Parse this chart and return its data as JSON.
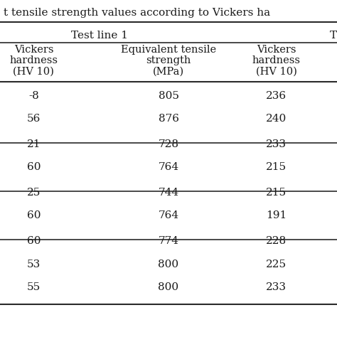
{
  "title": "t tensile strength values according to Vickers ha",
  "section_header": "Test line 1",
  "col1_header": [
    "Vickers",
    "hardness",
    "(HV 10)"
  ],
  "col2_header": [
    "Equivalent tensile",
    "strength",
    "(MPa)"
  ],
  "col3_header": [
    "Vickers",
    "hardness",
    "(HV 10)"
  ],
  "col1_partial": [
    "-8",
    "56",
    "21",
    "60",
    "25",
    "60",
    "60",
    "53",
    "55"
  ],
  "col2_values": [
    "805",
    "876",
    "728",
    "764",
    "744",
    "764",
    "774",
    "800",
    "800"
  ],
  "col3_values": [
    "236",
    "240",
    "233",
    "215",
    "215",
    "191",
    "228",
    "225",
    "233"
  ],
  "group_sizes": [
    2,
    2,
    2,
    3
  ],
  "bg_color": "#ffffff",
  "text_color": "#1a1a1a",
  "font_size": 11,
  "header_font_size": 11
}
